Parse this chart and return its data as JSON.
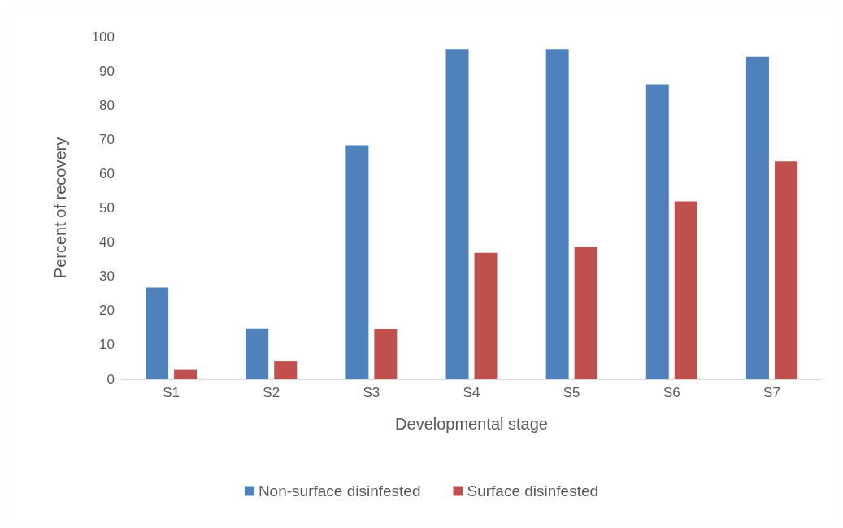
{
  "chart_data": {
    "type": "bar",
    "xlabel": "Developmental stage",
    "ylabel": "Percent of recovery",
    "categories": [
      "S1",
      "S2",
      "S3",
      "S4",
      "S5",
      "S6",
      "S7"
    ],
    "series": [
      {
        "name": "Non-surface disinfested",
        "color": "#4f81bd",
        "values": [
          26.7,
          14.8,
          68.3,
          96.4,
          96.4,
          86.1,
          94.1
        ]
      },
      {
        "name": "Surface disinfested",
        "color": "#c0504d",
        "values": [
          2.7,
          5.2,
          14.6,
          36.9,
          38.7,
          51.9,
          63.6
        ]
      }
    ],
    "ylim": [
      0,
      100
    ],
    "yticks": [
      0,
      10,
      20,
      30,
      40,
      50,
      60,
      70,
      80,
      90,
      100
    ],
    "grid": false,
    "legend": "bottom"
  }
}
